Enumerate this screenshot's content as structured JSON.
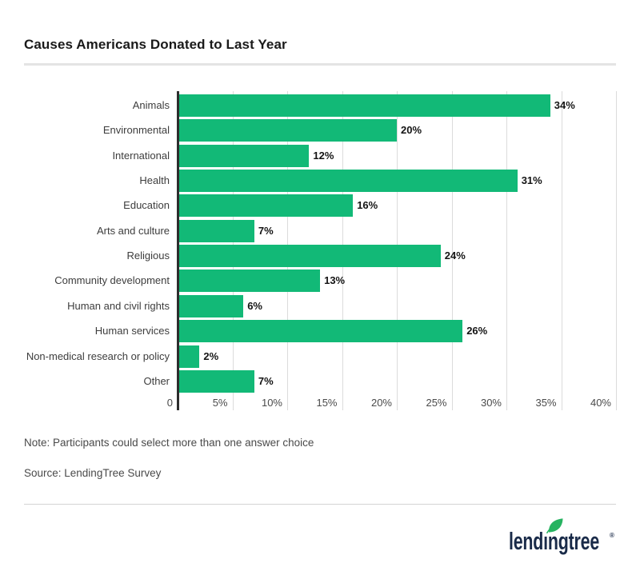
{
  "title": "Causes Americans Donated to Last Year",
  "note": "Note: Participants could select more than one answer choice",
  "source": "Source: LendingTree Survey",
  "logo": {
    "text": "lendıngtree",
    "registered": "®",
    "leaf_icon": "leaf-icon"
  },
  "colors": {
    "bar_green": "#12b977",
    "leaf_green": "#27b361",
    "logo_navy": "#1a2b49",
    "axis": "#2d2d2d",
    "gridline": "#dbdbdb",
    "divider": "#e4e4e4"
  },
  "chart_data": {
    "type": "bar",
    "orientation": "horizontal",
    "title": "Causes Americans Donated to Last Year",
    "categories": [
      "Animals",
      "Environmental",
      "International",
      "Health",
      "Education",
      "Arts and culture",
      "Religious",
      "Community development",
      "Human and civil rights",
      "Human services",
      "Non-medical research or policy",
      "Other"
    ],
    "values": [
      34,
      20,
      12,
      31,
      16,
      7,
      24,
      13,
      6,
      26,
      2,
      7
    ],
    "value_labels": [
      "34%",
      "20%",
      "12%",
      "31%",
      "16%",
      "7%",
      "24%",
      "13%",
      "6%",
      "26%",
      "2%",
      "7%"
    ],
    "x_ticks": [
      "0",
      "5%",
      "10%",
      "15%",
      "20%",
      "25%",
      "30%",
      "35%",
      "40%"
    ],
    "xlim": [
      0,
      40
    ],
    "grid": true,
    "legend": false,
    "bar_color": "#12b977"
  }
}
